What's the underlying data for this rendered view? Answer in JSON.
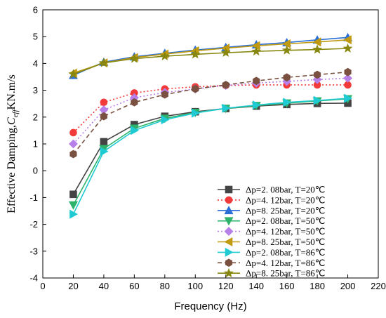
{
  "chart_data": {
    "type": "line",
    "xlabel": "Frequency (Hz)",
    "ylabel_main": "Effective Damping,",
    "ylabel_symbol": "C",
    "ylabel_subscript": "eff",
    "ylabel_unit": "KN.m/s",
    "xlim": [
      0,
      220
    ],
    "ylim": [
      -4,
      6
    ],
    "x_ticks": [
      0,
      20,
      40,
      60,
      80,
      100,
      120,
      140,
      160,
      180,
      200,
      220
    ],
    "y_ticks": [
      -4,
      -3,
      -2,
      -1,
      0,
      1,
      2,
      3,
      4,
      5,
      6
    ],
    "grid": false,
    "legend_position": "bottom-right",
    "x": [
      20,
      40,
      60,
      80,
      100,
      120,
      140,
      160,
      180,
      200
    ],
    "series": [
      {
        "name": "Δp=2. 08bar, T=20℃",
        "color": "#444444",
        "marker": "square",
        "line": "solid",
        "values": [
          -0.88,
          1.08,
          1.72,
          2.03,
          2.2,
          2.32,
          2.41,
          2.47,
          2.51,
          2.52
        ]
      },
      {
        "name": "Δp=4. 12bar, T=20℃",
        "color": "#f23a3a",
        "marker": "circle",
        "line": "dotted",
        "values": [
          1.42,
          2.55,
          2.9,
          3.05,
          3.13,
          3.18,
          3.2,
          3.2,
          3.2,
          3.2
        ]
      },
      {
        "name": "Δp=8. 25bar, T=20℃",
        "color": "#2b6fd6",
        "marker": "triangle-up",
        "line": "solid",
        "values": [
          3.56,
          4.05,
          4.25,
          4.38,
          4.5,
          4.6,
          4.7,
          4.78,
          4.88,
          4.97
        ]
      },
      {
        "name": "Δp=2. 08bar, T=50℃",
        "color": "#2db36b",
        "marker": "triangle-down",
        "line": "solid",
        "values": [
          -1.28,
          0.82,
          1.58,
          1.95,
          2.17,
          2.32,
          2.43,
          2.52,
          2.6,
          2.68
        ]
      },
      {
        "name": "Δp=4. 12bar, T=50℃",
        "color": "#b77fe8",
        "marker": "diamond",
        "line": "dotted",
        "values": [
          1.0,
          2.27,
          2.72,
          2.92,
          3.05,
          3.18,
          3.27,
          3.33,
          3.4,
          3.45
        ]
      },
      {
        "name": "Δp=8. 25bar, T=50℃",
        "color": "#c09a10",
        "marker": "triangle-left",
        "line": "solid",
        "values": [
          3.64,
          4.02,
          4.22,
          4.35,
          4.47,
          4.57,
          4.66,
          4.73,
          4.8,
          4.88
        ]
      },
      {
        "name": "Δp=2. 08bar, T=86℃",
        "color": "#1fcbd2",
        "marker": "triangle-right",
        "line": "solid",
        "values": [
          -1.62,
          0.72,
          1.5,
          1.9,
          2.15,
          2.33,
          2.45,
          2.55,
          2.62,
          2.7
        ]
      },
      {
        "name": "Δp=4. 12bar, T=86℃",
        "color": "#7a5040",
        "marker": "hexagon",
        "line": "dashed",
        "values": [
          0.62,
          2.03,
          2.55,
          2.84,
          3.05,
          3.2,
          3.35,
          3.48,
          3.58,
          3.68
        ]
      },
      {
        "name": "Δp=8. 25bar, T=86℃",
        "color": "#888810",
        "marker": "star",
        "line": "solid",
        "values": [
          3.6,
          4.02,
          4.18,
          4.27,
          4.34,
          4.4,
          4.45,
          4.49,
          4.52,
          4.56
        ]
      }
    ]
  }
}
